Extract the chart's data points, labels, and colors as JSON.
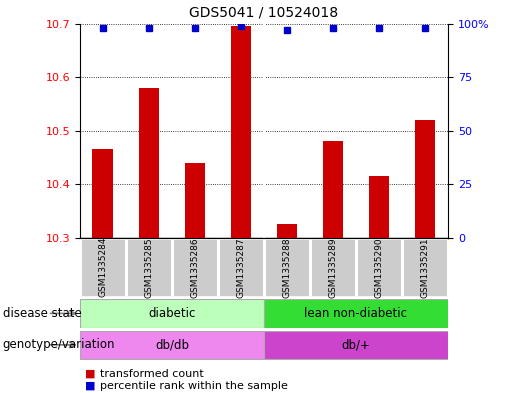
{
  "title": "GDS5041 / 10524018",
  "samples": [
    "GSM1335284",
    "GSM1335285",
    "GSM1335286",
    "GSM1335287",
    "GSM1335288",
    "GSM1335289",
    "GSM1335290",
    "GSM1335291"
  ],
  "transformed_counts": [
    10.465,
    10.58,
    10.44,
    10.695,
    10.325,
    10.48,
    10.415,
    10.52
  ],
  "percentile_ranks": [
    98,
    98,
    98,
    99,
    97,
    98,
    98,
    98
  ],
  "ylim_left": [
    10.3,
    10.7
  ],
  "ylim_right": [
    0,
    100
  ],
  "yticks_left": [
    10.3,
    10.4,
    10.5,
    10.6,
    10.7
  ],
  "yticks_right": [
    0,
    25,
    50,
    75,
    100
  ],
  "disease_state_groups": [
    {
      "label": "diabetic",
      "start": 0,
      "end": 4,
      "color": "#bbffbb"
    },
    {
      "label": "lean non-diabetic",
      "start": 4,
      "end": 8,
      "color": "#33dd33"
    }
  ],
  "genotype_groups": [
    {
      "label": "db/db",
      "start": 0,
      "end": 4,
      "color": "#ee88ee"
    },
    {
      "label": "db/+",
      "start": 4,
      "end": 8,
      "color": "#cc44cc"
    }
  ],
  "bar_color": "#cc0000",
  "dot_color": "#0000cc",
  "bg_color": "#cccccc",
  "sample_border_color": "#aaaaaa",
  "title_fontsize": 10,
  "tick_fontsize": 8,
  "ann_fontsize": 8.5
}
